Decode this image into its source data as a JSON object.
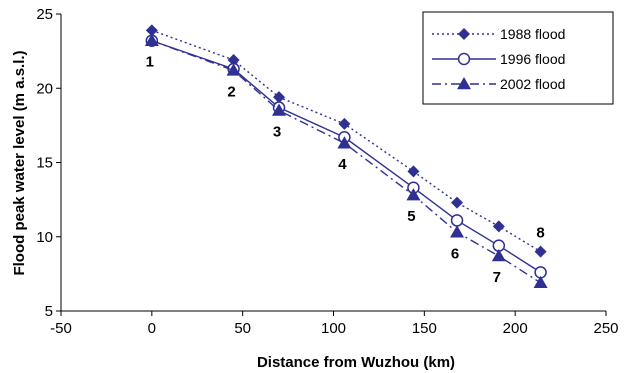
{
  "chart_data": {
    "type": "line",
    "title": "",
    "xlabel": "Distance from Wuzhou (km)",
    "ylabel": "Flood peak water level (m a.s.l.)",
    "xlim": [
      -50,
      250
    ],
    "ylim": [
      5,
      25
    ],
    "xticks": [
      -50,
      0,
      50,
      100,
      150,
      200,
      250
    ],
    "yticks": [
      5,
      10,
      15,
      20,
      25
    ],
    "grid": false,
    "legend_position": "top-right",
    "color": "#2e3192",
    "x": [
      0,
      45,
      70,
      106,
      144,
      168,
      191,
      214
    ],
    "series": [
      {
        "name": "1988 flood",
        "marker": "diamond",
        "line_style": "dotted",
        "values": [
          23.9,
          21.9,
          19.4,
          17.6,
          14.4,
          12.3,
          10.7,
          9.0
        ]
      },
      {
        "name": "1996 flood",
        "marker": "circle-open",
        "line_style": "solid",
        "values": [
          23.2,
          21.3,
          18.7,
          16.7,
          13.3,
          11.1,
          9.4,
          7.6
        ]
      },
      {
        "name": "2002 flood",
        "marker": "triangle",
        "line_style": "dashdot",
        "values": [
          23.2,
          21.2,
          18.5,
          16.3,
          12.8,
          10.3,
          8.7,
          6.9
        ]
      }
    ],
    "point_labels": [
      "1",
      "2",
      "3",
      "4",
      "5",
      "6",
      "7",
      "8"
    ]
  }
}
